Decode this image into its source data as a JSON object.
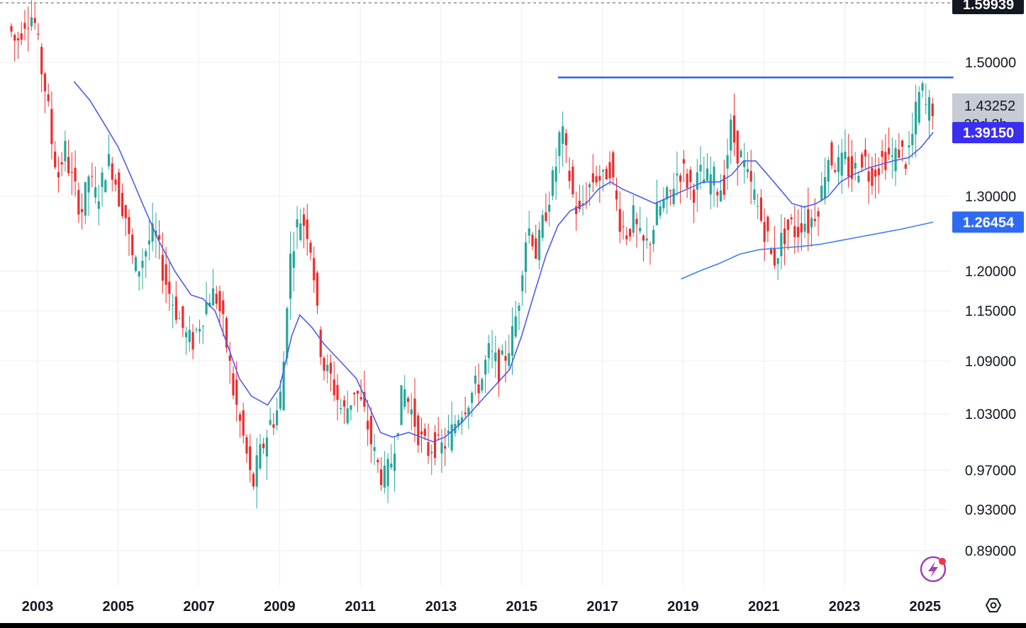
{
  "chart_data": {
    "type": "candlestick",
    "title": "",
    "xlabel": "",
    "ylabel": "",
    "scale": "log",
    "ylim": [
      0.865,
      1.61
    ],
    "xlim": [
      2002.3,
      2025.7
    ],
    "grid": true,
    "x_tick_labels": [
      "2003",
      "2005",
      "2007",
      "2009",
      "2011",
      "2013",
      "2015",
      "2017",
      "2019",
      "2021",
      "2023",
      "2025"
    ],
    "y_tick_labels": [
      "1.50000",
      "1.30000",
      "1.20000",
      "1.15000",
      "1.09000",
      "1.03000",
      "0.97000",
      "0.93000",
      "0.89000"
    ],
    "price_labels": {
      "top": "1.59939",
      "current": "1.43252",
      "countdown": "28d 3h",
      "ma_fast": "1.39150",
      "ma_slow": "1.26454"
    },
    "colors": {
      "up": "#26a69a",
      "down": "#ef2b2b",
      "ma_fast": "#4d5cf0",
      "ma_slow": "#3f7ff0",
      "resistance": "#2962ff",
      "grid": "#eeeeee"
    },
    "resistance_line": {
      "start_year": 2015.9,
      "end_year": 2025.7,
      "price": 1.476
    },
    "price_path": [
      [
        2002.35,
        1.56
      ],
      [
        2002.55,
        1.53
      ],
      [
        2002.75,
        1.57
      ],
      [
        2002.9,
        1.58
      ],
      [
        2003.0,
        1.57
      ],
      [
        2003.15,
        1.5
      ],
      [
        2003.3,
        1.45
      ],
      [
        2003.45,
        1.37
      ],
      [
        2003.6,
        1.33
      ],
      [
        2003.75,
        1.37
      ],
      [
        2003.9,
        1.33
      ],
      [
        2004.05,
        1.3
      ],
      [
        2004.2,
        1.28
      ],
      [
        2004.35,
        1.33
      ],
      [
        2004.5,
        1.3
      ],
      [
        2004.65,
        1.31
      ],
      [
        2004.8,
        1.35
      ],
      [
        2004.95,
        1.34
      ],
      [
        2005.1,
        1.3
      ],
      [
        2005.25,
        1.28
      ],
      [
        2005.4,
        1.22
      ],
      [
        2005.55,
        1.2
      ],
      [
        2005.7,
        1.22
      ],
      [
        2005.85,
        1.24
      ],
      [
        2006.0,
        1.25
      ],
      [
        2006.15,
        1.21
      ],
      [
        2006.3,
        1.18
      ],
      [
        2006.45,
        1.16
      ],
      [
        2006.6,
        1.14
      ],
      [
        2006.75,
        1.12
      ],
      [
        2006.9,
        1.11
      ],
      [
        2007.05,
        1.13
      ],
      [
        2007.2,
        1.15
      ],
      [
        2007.35,
        1.17
      ],
      [
        2007.5,
        1.17
      ],
      [
        2007.65,
        1.14
      ],
      [
        2007.8,
        1.1
      ],
      [
        2007.95,
        1.05
      ],
      [
        2008.1,
        1.02
      ],
      [
        2008.25,
        0.99
      ],
      [
        2008.4,
        0.95
      ],
      [
        2008.55,
        0.98
      ],
      [
        2008.7,
        1.0
      ],
      [
        2008.85,
        1.02
      ],
      [
        2009.0,
        1.03
      ],
      [
        2009.15,
        1.06
      ],
      [
        2009.3,
        1.2
      ],
      [
        2009.45,
        1.25
      ],
      [
        2009.6,
        1.27
      ],
      [
        2009.75,
        1.26
      ],
      [
        2009.9,
        1.22
      ],
      [
        2010.05,
        1.12
      ],
      [
        2010.2,
        1.08
      ],
      [
        2010.35,
        1.07
      ],
      [
        2010.5,
        1.05
      ],
      [
        2010.65,
        1.03
      ],
      [
        2010.8,
        1.04
      ],
      [
        2010.95,
        1.06
      ],
      [
        2011.1,
        1.04
      ],
      [
        2011.25,
        1.02
      ],
      [
        2011.4,
        0.99
      ],
      [
        2011.55,
        0.97
      ],
      [
        2011.7,
        0.96
      ],
      [
        2011.85,
        0.98
      ],
      [
        2012.0,
        1.02
      ],
      [
        2012.15,
        1.06
      ],
      [
        2012.3,
        1.04
      ],
      [
        2012.45,
        1.02
      ],
      [
        2012.6,
        1.0
      ],
      [
        2012.75,
        0.99
      ],
      [
        2012.9,
        1.0
      ],
      [
        2013.05,
        0.99
      ],
      [
        2013.2,
        1.0
      ],
      [
        2013.35,
        1.01
      ],
      [
        2013.5,
        1.03
      ],
      [
        2013.65,
        1.04
      ],
      [
        2013.8,
        1.05
      ],
      [
        2013.95,
        1.06
      ],
      [
        2014.1,
        1.07
      ],
      [
        2014.25,
        1.1
      ],
      [
        2014.4,
        1.09
      ],
      [
        2014.55,
        1.08
      ],
      [
        2014.7,
        1.1
      ],
      [
        2014.85,
        1.12
      ],
      [
        2015.0,
        1.16
      ],
      [
        2015.15,
        1.24
      ],
      [
        2015.3,
        1.26
      ],
      [
        2015.45,
        1.22
      ],
      [
        2015.6,
        1.26
      ],
      [
        2015.75,
        1.3
      ],
      [
        2015.9,
        1.33
      ],
      [
        2016.05,
        1.4
      ],
      [
        2016.2,
        1.35
      ],
      [
        2016.35,
        1.3
      ],
      [
        2016.5,
        1.27
      ],
      [
        2016.65,
        1.3
      ],
      [
        2016.8,
        1.32
      ],
      [
        2016.95,
        1.33
      ],
      [
        2017.1,
        1.32
      ],
      [
        2017.25,
        1.35
      ],
      [
        2017.4,
        1.3
      ],
      [
        2017.55,
        1.26
      ],
      [
        2017.7,
        1.25
      ],
      [
        2017.85,
        1.27
      ],
      [
        2018.0,
        1.24
      ],
      [
        2018.15,
        1.23
      ],
      [
        2018.3,
        1.25
      ],
      [
        2018.45,
        1.28
      ],
      [
        2018.6,
        1.29
      ],
      [
        2018.75,
        1.3
      ],
      [
        2018.9,
        1.33
      ],
      [
        2019.05,
        1.34
      ],
      [
        2019.2,
        1.32
      ],
      [
        2019.35,
        1.31
      ],
      [
        2019.5,
        1.33
      ],
      [
        2019.65,
        1.32
      ],
      [
        2019.8,
        1.33
      ],
      [
        2019.95,
        1.31
      ],
      [
        2020.1,
        1.32
      ],
      [
        2020.25,
        1.4
      ],
      [
        2020.4,
        1.37
      ],
      [
        2020.55,
        1.35
      ],
      [
        2020.7,
        1.32
      ],
      [
        2020.85,
        1.3
      ],
      [
        2021.0,
        1.27
      ],
      [
        2021.15,
        1.25
      ],
      [
        2021.3,
        1.21
      ],
      [
        2021.45,
        1.23
      ],
      [
        2021.6,
        1.25
      ],
      [
        2021.75,
        1.26
      ],
      [
        2021.9,
        1.25
      ],
      [
        2022.05,
        1.27
      ],
      [
        2022.2,
        1.26
      ],
      [
        2022.35,
        1.28
      ],
      [
        2022.5,
        1.3
      ],
      [
        2022.65,
        1.36
      ],
      [
        2022.8,
        1.35
      ],
      [
        2022.95,
        1.34
      ],
      [
        2023.1,
        1.35
      ],
      [
        2023.25,
        1.33
      ],
      [
        2023.4,
        1.34
      ],
      [
        2023.55,
        1.36
      ],
      [
        2023.7,
        1.33
      ],
      [
        2023.85,
        1.34
      ],
      [
        2024.0,
        1.35
      ],
      [
        2024.15,
        1.36
      ],
      [
        2024.3,
        1.35
      ],
      [
        2024.45,
        1.37
      ],
      [
        2024.6,
        1.35
      ],
      [
        2024.75,
        1.38
      ],
      [
        2024.9,
        1.44
      ],
      [
        2025.0,
        1.46
      ],
      [
        2025.05,
        1.44
      ],
      [
        2025.1,
        1.43
      ],
      [
        2025.25,
        1.432
      ]
    ],
    "ma_fast": [
      [
        2003.9,
        1.47
      ],
      [
        2004.3,
        1.44
      ],
      [
        2004.7,
        1.4
      ],
      [
        2005.0,
        1.37
      ],
      [
        2005.3,
        1.33
      ],
      [
        2005.6,
        1.29
      ],
      [
        2006.0,
        1.24
      ],
      [
        2006.4,
        1.2
      ],
      [
        2006.8,
        1.17
      ],
      [
        2007.1,
        1.165
      ],
      [
        2007.4,
        1.15
      ],
      [
        2007.7,
        1.11
      ],
      [
        2008.0,
        1.07
      ],
      [
        2008.3,
        1.05
      ],
      [
        2008.7,
        1.04
      ],
      [
        2009.0,
        1.06
      ],
      [
        2009.3,
        1.12
      ],
      [
        2009.5,
        1.145
      ],
      [
        2009.8,
        1.13
      ],
      [
        2010.1,
        1.11
      ],
      [
        2010.5,
        1.09
      ],
      [
        2010.9,
        1.07
      ],
      [
        2011.2,
        1.04
      ],
      [
        2011.5,
        1.01
      ],
      [
        2011.8,
        1.005
      ],
      [
        2012.2,
        1.01
      ],
      [
        2012.5,
        1.005
      ],
      [
        2012.8,
        1.0
      ],
      [
        2013.1,
        1.005
      ],
      [
        2013.5,
        1.02
      ],
      [
        2013.9,
        1.04
      ],
      [
        2014.3,
        1.06
      ],
      [
        2014.7,
        1.08
      ],
      [
        2015.0,
        1.12
      ],
      [
        2015.3,
        1.17
      ],
      [
        2015.6,
        1.22
      ],
      [
        2015.9,
        1.26
      ],
      [
        2016.2,
        1.28
      ],
      [
        2016.6,
        1.29
      ],
      [
        2016.9,
        1.31
      ],
      [
        2017.2,
        1.32
      ],
      [
        2017.5,
        1.31
      ],
      [
        2017.9,
        1.3
      ],
      [
        2018.3,
        1.29
      ],
      [
        2018.7,
        1.3
      ],
      [
        2019.1,
        1.31
      ],
      [
        2019.5,
        1.32
      ],
      [
        2019.9,
        1.32
      ],
      [
        2020.2,
        1.33
      ],
      [
        2020.5,
        1.35
      ],
      [
        2020.8,
        1.35
      ],
      [
        2021.1,
        1.33
      ],
      [
        2021.4,
        1.31
      ],
      [
        2021.7,
        1.29
      ],
      [
        2022.0,
        1.285
      ],
      [
        2022.3,
        1.29
      ],
      [
        2022.6,
        1.3
      ],
      [
        2022.9,
        1.32
      ],
      [
        2023.2,
        1.33
      ],
      [
        2023.6,
        1.34
      ],
      [
        2023.9,
        1.345
      ],
      [
        2024.2,
        1.35
      ],
      [
        2024.6,
        1.355
      ],
      [
        2024.9,
        1.37
      ],
      [
        2025.2,
        1.392
      ]
    ],
    "ma_slow": [
      [
        2018.95,
        1.19
      ],
      [
        2019.4,
        1.2
      ],
      [
        2019.9,
        1.21
      ],
      [
        2020.4,
        1.222
      ],
      [
        2020.9,
        1.228
      ],
      [
        2021.4,
        1.23
      ],
      [
        2021.9,
        1.232
      ],
      [
        2022.4,
        1.235
      ],
      [
        2022.9,
        1.24
      ],
      [
        2023.4,
        1.245
      ],
      [
        2023.9,
        1.25
      ],
      [
        2024.4,
        1.255
      ],
      [
        2024.9,
        1.261
      ],
      [
        2025.2,
        1.2645
      ]
    ]
  }
}
